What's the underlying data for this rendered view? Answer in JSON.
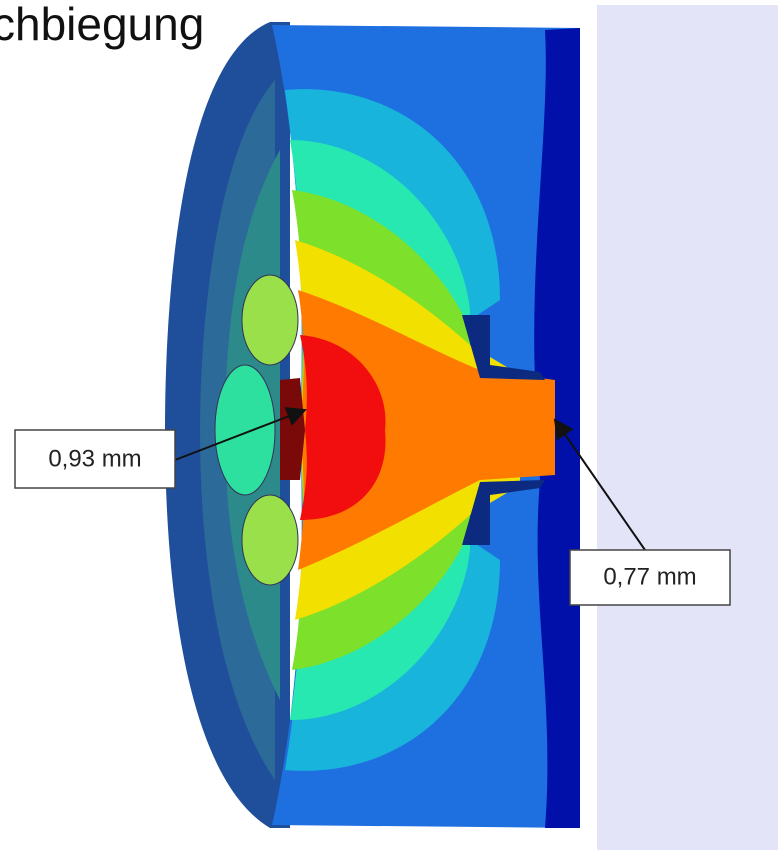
{
  "header": {
    "title": "chbiegung"
  },
  "annotations": [
    {
      "label": "0,93 mm"
    },
    {
      "label": "0,77 mm"
    }
  ]
}
